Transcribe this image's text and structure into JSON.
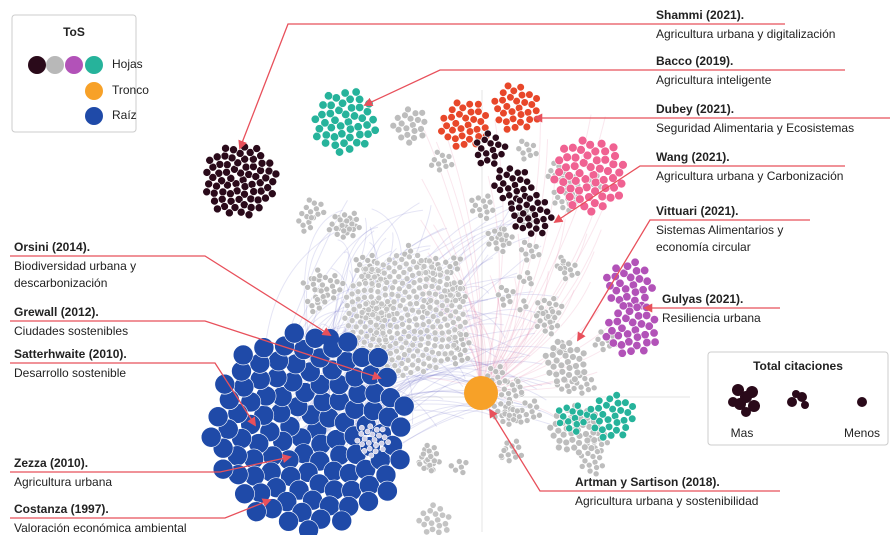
{
  "legend": {
    "title": "ToS",
    "items": [
      "Hojas",
      "Tronco",
      "Raíz"
    ]
  },
  "citations": {
    "title": "Total citaciones",
    "more": "Mas",
    "less": "Menos"
  },
  "annotations": [
    {
      "title": "Shammi (2021).",
      "lines": [
        "Agricultura urbana y digitalización"
      ]
    },
    {
      "title": "Bacco (2019).",
      "lines": [
        "Agricultura inteligente"
      ]
    },
    {
      "title": "Dubey (2021).",
      "lines": [
        "Seguridad Alimentaria y Ecosistemas"
      ]
    },
    {
      "title": "Wang (2021).",
      "lines": [
        "Agricultura urbana y Carbonización"
      ]
    },
    {
      "title": "Vittuari (2021).",
      "lines": [
        "Sistemas Alimentarios y",
        "economía circular"
      ]
    },
    {
      "title": "Gulyas (2021).",
      "lines": [
        "Resiliencia urbana"
      ]
    },
    {
      "title": "Artman y Sartison (2018).",
      "lines": [
        "Agricultura urbana y sostenibilidad"
      ]
    },
    {
      "title": "Orsini (2014).",
      "lines": [
        "Biodiversidad urbana y",
        "descarbonización"
      ]
    },
    {
      "title": "Grewall (2012).",
      "lines": [
        "Ciudades sostenibles"
      ]
    },
    {
      "title": "Satterhwaite (2010).",
      "lines": [
        "Desarrollo sostenible"
      ]
    },
    {
      "title": "Zezza (2010).",
      "lines": [
        "Agricultura urbana"
      ]
    },
    {
      "title": "Costanza (1997).",
      "lines": [
        "Valoración económica ambiental"
      ]
    }
  ]
}
